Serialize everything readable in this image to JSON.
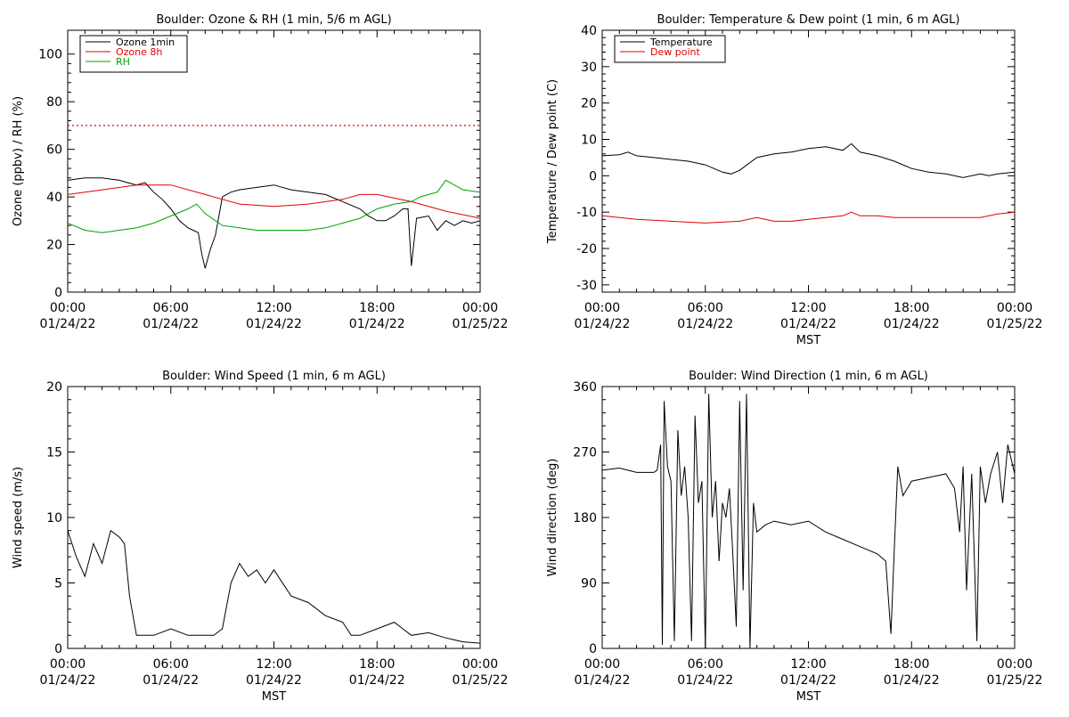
{
  "chart_data": [
    {
      "type": "line",
      "title": "Boulder: Ozone & RH (1 min, 5/6 m AGL)",
      "xlabel": "",
      "ylabel": "Ozone (ppbv) / RH (%)",
      "xlim": [
        "01/24/22 00:00",
        "01/25/22 00:00"
      ],
      "ylim": [
        0,
        110
      ],
      "yticks": [
        0,
        20,
        40,
        60,
        80,
        100
      ],
      "xticks": [
        {
          "time": "00:00",
          "date": "01/24/22"
        },
        {
          "time": "06:00",
          "date": "01/24/22"
        },
        {
          "time": "12:00",
          "date": "01/24/22"
        },
        {
          "time": "18:00",
          "date": "01/24/22"
        },
        {
          "time": "00:00",
          "date": "01/25/22"
        }
      ],
      "legend_position": "top-left",
      "reference_line": {
        "y": 70,
        "style": "dotted",
        "color": "#e00000"
      },
      "series": [
        {
          "name": "Ozone 1min",
          "color": "#000000",
          "x": [
            0,
            1,
            2,
            3,
            3.5,
            4,
            4.5,
            5,
            5.5,
            6,
            6.5,
            7,
            7.3,
            7.6,
            7.8,
            8,
            8.3,
            8.6,
            9,
            9.5,
            10,
            11,
            12,
            13,
            14,
            15,
            16,
            17,
            17.5,
            18,
            18.5,
            19,
            19.5,
            19.8,
            20,
            20.3,
            21,
            21.5,
            22,
            22.5,
            23,
            23.5,
            24
          ],
          "y": [
            47,
            48,
            48,
            47,
            46,
            45,
            46,
            42,
            39,
            35,
            30,
            27,
            26,
            25,
            16,
            10,
            18,
            24,
            40,
            42,
            43,
            44,
            45,
            43,
            42,
            41,
            38,
            35,
            32,
            30,
            30,
            32,
            35,
            35,
            11,
            31,
            32,
            26,
            30,
            28,
            30,
            29,
            30
          ]
        },
        {
          "name": "Ozone 8h",
          "color": "#e00000",
          "x": [
            0,
            2,
            4,
            6,
            8,
            10,
            12,
            14,
            16,
            17,
            18,
            20,
            22,
            24
          ],
          "y": [
            41,
            43,
            45,
            45,
            41,
            37,
            36,
            37,
            39,
            41,
            41,
            38,
            34,
            31
          ]
        },
        {
          "name": "RH",
          "color": "#00a000",
          "x": [
            0,
            1,
            2,
            3,
            4,
            5,
            6,
            7,
            7.5,
            8,
            9,
            10,
            11,
            12,
            13,
            14,
            15,
            16,
            17,
            17.5,
            18,
            19,
            20,
            20.5,
            21,
            21.5,
            22,
            22.5,
            23,
            24
          ],
          "y": [
            29,
            26,
            25,
            26,
            27,
            29,
            32,
            35,
            37,
            33,
            28,
            27,
            26,
            26,
            26,
            26,
            27,
            29,
            31,
            33,
            35,
            37,
            38,
            40,
            41,
            42,
            47,
            45,
            43,
            42
          ]
        }
      ]
    },
    {
      "type": "line",
      "title": "Boulder: Temperature & Dew point (1 min, 6 m AGL)",
      "xlabel": "MST",
      "ylabel": "Temperature / Dew point (C)",
      "xlim": [
        "01/24/22 00:00",
        "01/25/22 00:00"
      ],
      "ylim": [
        -32,
        40
      ],
      "yticks": [
        -30,
        -20,
        -10,
        0,
        10,
        20,
        30,
        40
      ],
      "xticks": [
        {
          "time": "00:00",
          "date": "01/24/22"
        },
        {
          "time": "06:00",
          "date": "01/24/22"
        },
        {
          "time": "12:00",
          "date": "01/24/22"
        },
        {
          "time": "18:00",
          "date": "01/24/22"
        },
        {
          "time": "00:00",
          "date": "01/25/22"
        }
      ],
      "legend_position": "top-left",
      "series": [
        {
          "name": "Temperature",
          "color": "#000000",
          "x": [
            0,
            1,
            1.5,
            2,
            3,
            4,
            5,
            6,
            6.5,
            7,
            7.5,
            8,
            9,
            10,
            11,
            12,
            13,
            13.5,
            14,
            14.5,
            15,
            16,
            17,
            18,
            19,
            20,
            21,
            22,
            22.5,
            23,
            24
          ],
          "y": [
            5.5,
            5.8,
            6.5,
            5.5,
            5.0,
            4.5,
            4.0,
            3.0,
            2.0,
            1.0,
            0.5,
            1.5,
            5.0,
            6.0,
            6.5,
            7.5,
            8.0,
            7.5,
            7.0,
            8.8,
            6.5,
            5.5,
            4.0,
            2.0,
            1.0,
            0.5,
            -0.5,
            0.5,
            0.0,
            0.5,
            1.0
          ]
        },
        {
          "name": "Dew point",
          "color": "#e00000",
          "x": [
            0,
            2,
            4,
            6,
            8,
            9,
            10,
            11,
            12,
            13,
            14,
            14.5,
            15,
            16,
            17,
            18,
            20,
            22,
            23,
            24
          ],
          "y": [
            -11.0,
            -12.0,
            -12.5,
            -13.0,
            -12.5,
            -11.5,
            -12.5,
            -12.5,
            -12.0,
            -11.5,
            -11.0,
            -10.0,
            -11.0,
            -11.0,
            -11.5,
            -11.5,
            -11.5,
            -11.5,
            -10.5,
            -10.0
          ]
        }
      ]
    },
    {
      "type": "line",
      "title": "Boulder: Wind Speed (1 min, 6 m AGL)",
      "xlabel": "MST",
      "ylabel": "Wind speed (m/s)",
      "xlim": [
        "01/24/22 00:00",
        "01/25/22 00:00"
      ],
      "ylim": [
        0,
        20
      ],
      "yticks": [
        0,
        5,
        10,
        15,
        20
      ],
      "xticks": [
        {
          "time": "00:00",
          "date": "01/24/22"
        },
        {
          "time": "06:00",
          "date": "01/24/22"
        },
        {
          "time": "12:00",
          "date": "01/24/22"
        },
        {
          "time": "18:00",
          "date": "01/24/22"
        },
        {
          "time": "00:00",
          "date": "01/25/22"
        }
      ],
      "series": [
        {
          "name": "",
          "color": "#000000",
          "x": [
            0,
            0.5,
            1,
            1.5,
            2,
            2.5,
            3,
            3.3,
            3.6,
            4,
            5,
            6,
            7,
            8,
            8.5,
            9,
            9.5,
            10,
            10.5,
            11,
            11.5,
            12,
            13,
            14,
            15,
            16,
            16.5,
            17,
            18,
            19,
            19.5,
            20,
            21,
            22,
            23,
            24
          ],
          "y": [
            9,
            7,
            5.5,
            8,
            6.5,
            9,
            8.5,
            8,
            4,
            1,
            1,
            1.5,
            1,
            1,
            1,
            1.5,
            5,
            6.5,
            5.5,
            6,
            5,
            6,
            4,
            3.5,
            2.5,
            2,
            1,
            1,
            1.5,
            2,
            1.5,
            1,
            1.2,
            0.8,
            0.5,
            0.4
          ]
        }
      ]
    },
    {
      "type": "line",
      "title": "Boulder: Wind Direction (1 min, 6 m AGL)",
      "xlabel": "MST",
      "ylabel": "Wind direction (deg)",
      "xlim": [
        "01/24/22 00:00",
        "01/25/22 00:00"
      ],
      "ylim": [
        0,
        360
      ],
      "yticks": [
        0,
        90,
        180,
        270,
        360
      ],
      "xticks": [
        {
          "time": "00:00",
          "date": "01/24/22"
        },
        {
          "time": "06:00",
          "date": "01/24/22"
        },
        {
          "time": "12:00",
          "date": "01/24/22"
        },
        {
          "time": "18:00",
          "date": "01/24/22"
        },
        {
          "time": "00:00",
          "date": "01/25/22"
        }
      ],
      "series": [
        {
          "name": "",
          "color": "#000000",
          "x": [
            0,
            1,
            2,
            3,
            3.2,
            3.4,
            3.5,
            3.6,
            3.8,
            4,
            4.2,
            4.4,
            4.6,
            4.8,
            5,
            5.2,
            5.4,
            5.6,
            5.8,
            6,
            6.2,
            6.4,
            6.6,
            6.8,
            7,
            7.2,
            7.4,
            7.6,
            7.8,
            8,
            8.2,
            8.4,
            8.6,
            8.8,
            9,
            9.5,
            10,
            11,
            12,
            13,
            14,
            15,
            16,
            16.5,
            16.8,
            17,
            17.2,
            17.5,
            18,
            19,
            20,
            20.5,
            20.8,
            21,
            21.2,
            21.5,
            21.8,
            22,
            22.3,
            22.6,
            23,
            23.3,
            23.6,
            24
          ],
          "y": [
            245,
            248,
            242,
            242,
            245,
            280,
            5,
            340,
            250,
            230,
            10,
            300,
            210,
            250,
            180,
            10,
            320,
            200,
            230,
            0,
            350,
            180,
            230,
            120,
            200,
            180,
            220,
            130,
            30,
            340,
            80,
            350,
            0,
            200,
            160,
            170,
            175,
            170,
            175,
            160,
            150,
            140,
            130,
            120,
            20,
            140,
            250,
            210,
            230,
            235,
            240,
            220,
            160,
            250,
            80,
            240,
            10,
            250,
            200,
            240,
            270,
            200,
            280,
            240
          ]
        }
      ]
    }
  ]
}
